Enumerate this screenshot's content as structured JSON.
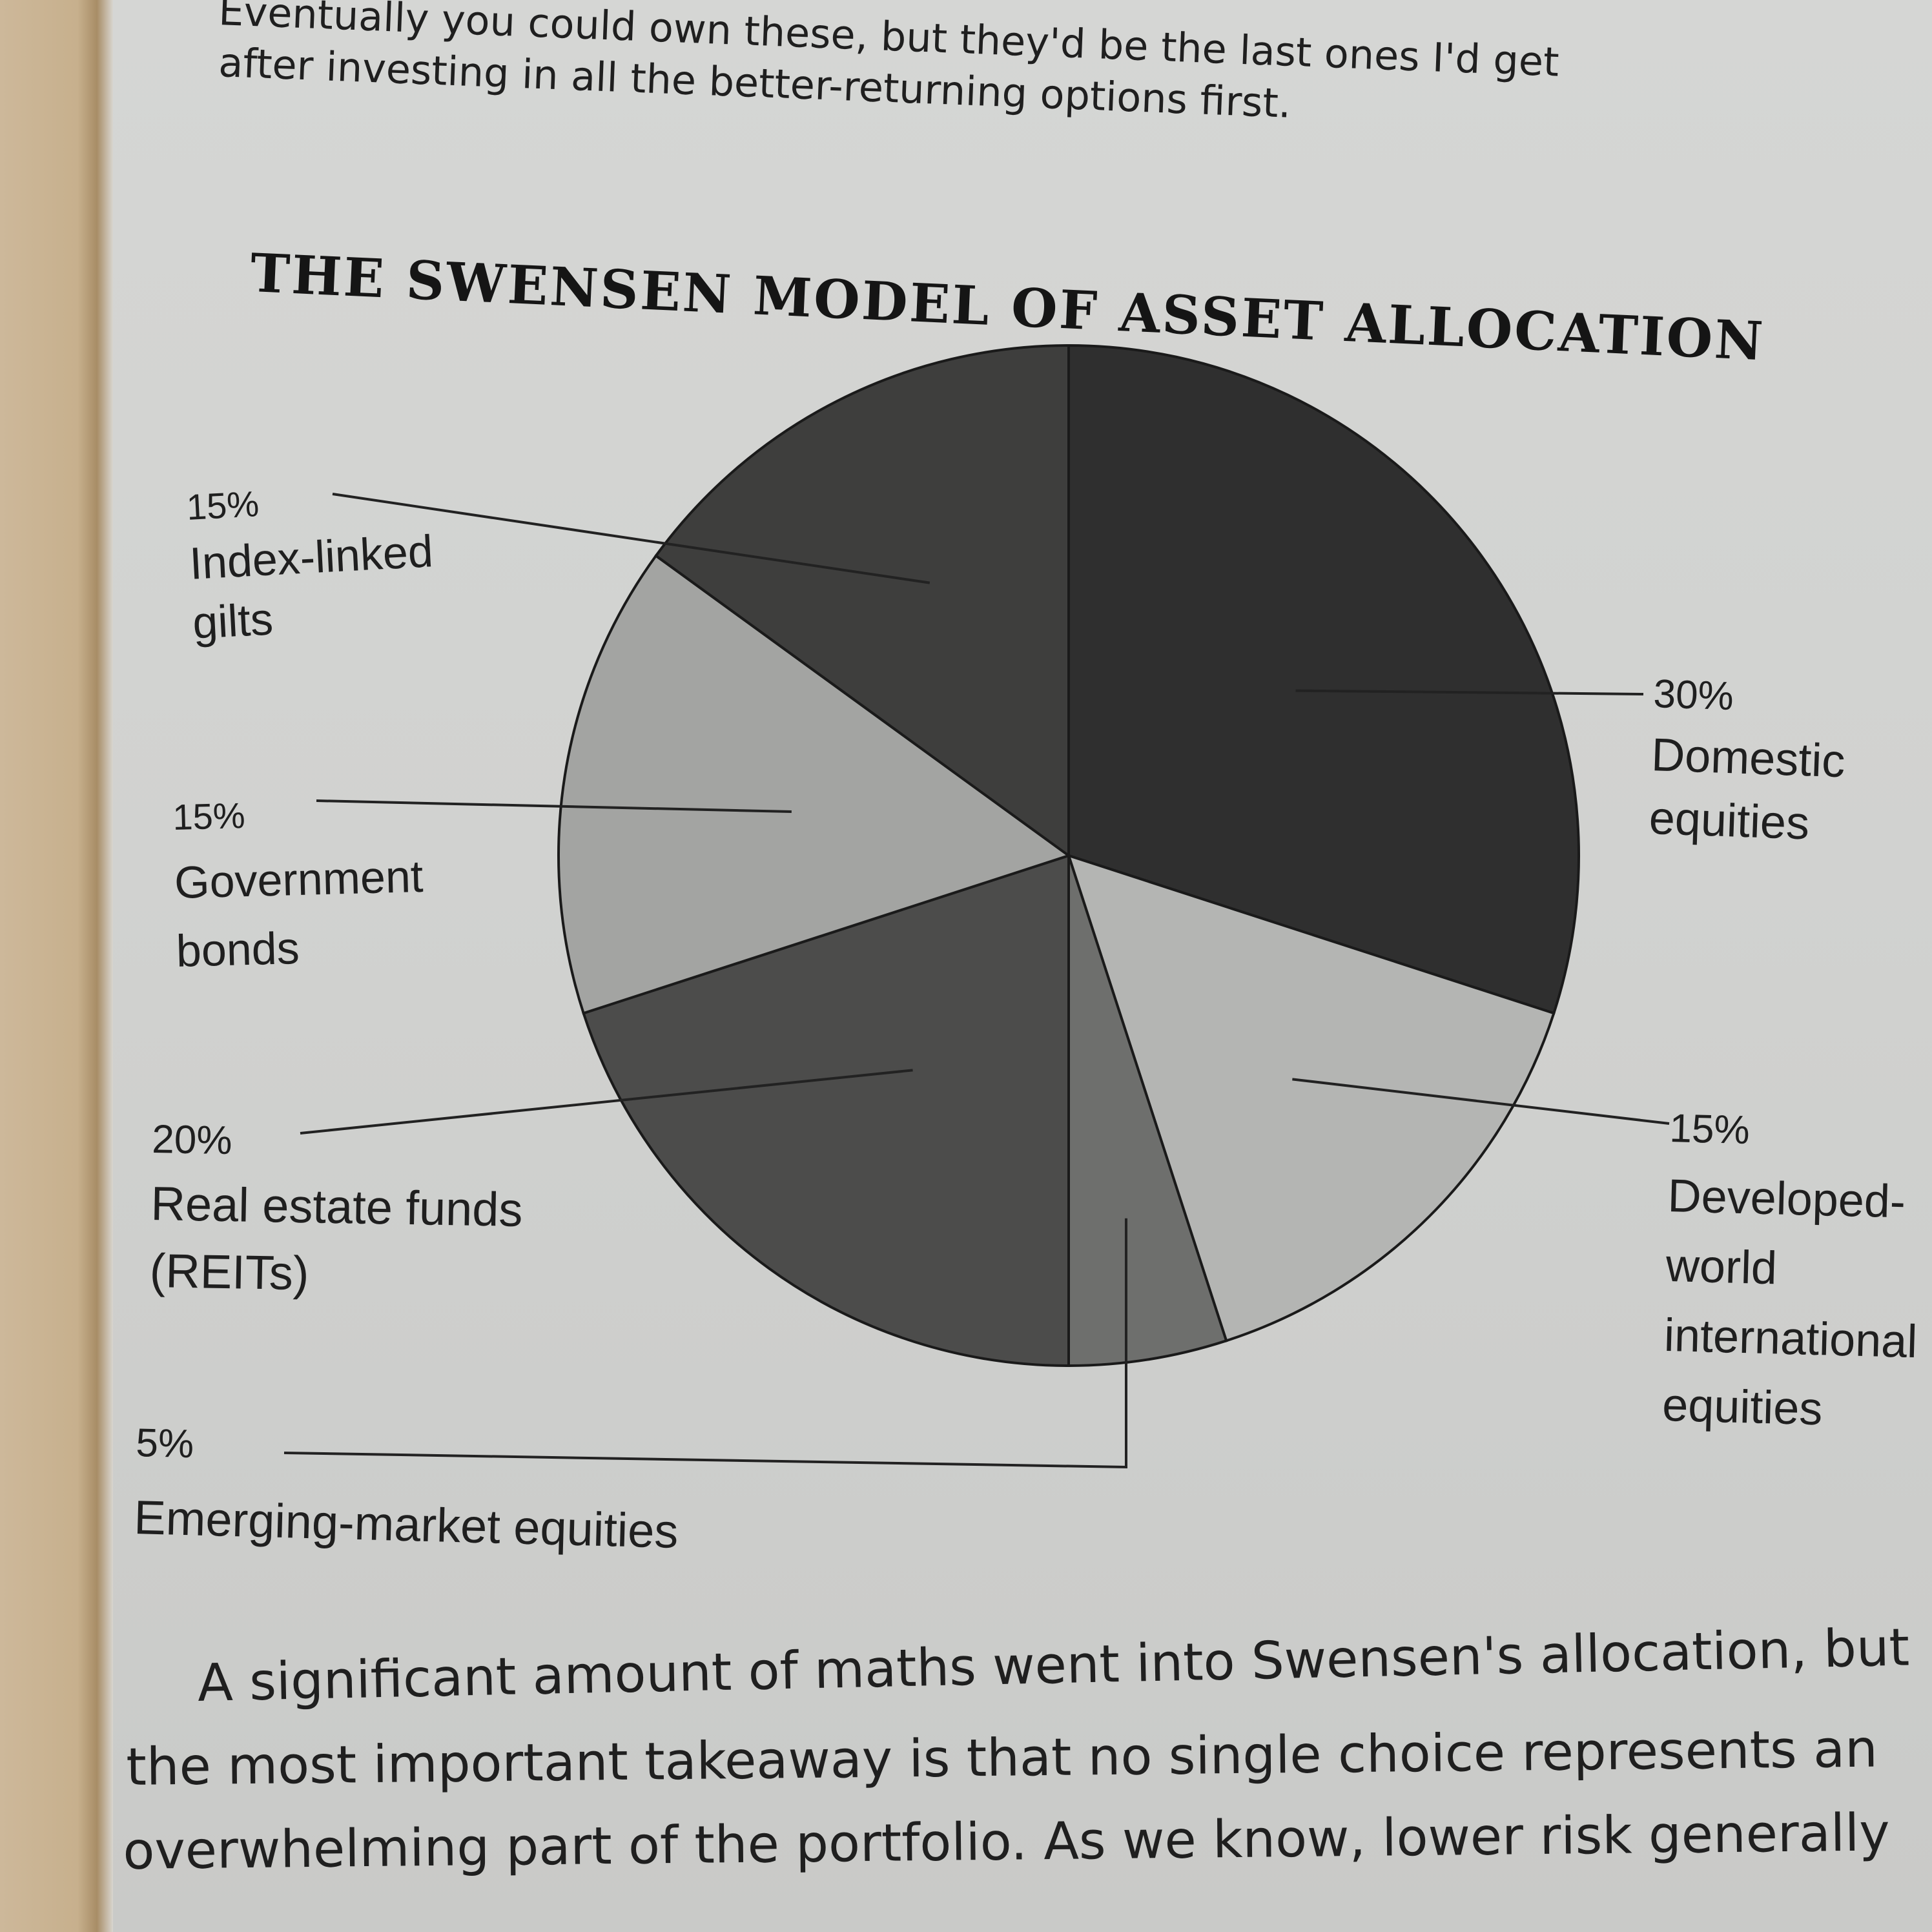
{
  "page_text": {
    "top_line1": "Eventually you could own these, but they'd be the last ones I'd get",
    "top_line2": "after investing in all the better-returning options first.",
    "bottom_line1": "A significant amount of maths went into Swensen's allocation, but",
    "bottom_line2": "the most important takeaway is that no single choice represents an",
    "bottom_line3": "overwhelming part of the portfolio. As we know, lower risk generally"
  },
  "chart_data": {
    "type": "pie",
    "title": "THE SWENSEN MODEL OF ASSET ALLOCATION",
    "slices": [
      {
        "label": "Domestic equities",
        "pct_text": "30%",
        "value": 30,
        "color": "#2f2f2f"
      },
      {
        "label": "Developed-world international equities",
        "pct_text": "15%",
        "value": 15,
        "color": "#b4b5b3"
      },
      {
        "label": "Emerging-market equities",
        "pct_text": "5%",
        "value": 5,
        "color": "#6e6f6d"
      },
      {
        "label": "Real estate funds (REITs)",
        "pct_text": "20%",
        "value": 20,
        "color": "#4c4c4b"
      },
      {
        "label": "Government bonds",
        "pct_text": "15%",
        "value": 15,
        "color": "#a3a4a2"
      },
      {
        "label": "Index-linked gilts",
        "pct_text": "15%",
        "value": 15,
        "color": "#3e3e3d"
      }
    ],
    "label_lines": {
      "domestic": [
        "30%",
        "Domestic",
        "equities"
      ],
      "developed": [
        "15%",
        "Developed-",
        "world",
        "international",
        "equities"
      ],
      "emerging": [
        "5%",
        "Emerging-market equities"
      ],
      "reits": [
        "20%",
        "Real estate funds",
        "(REITs)"
      ],
      "gov": [
        "15%",
        "Government",
        "bonds"
      ],
      "gilts": [
        "15%",
        "Index-linked",
        "gilts"
      ]
    }
  }
}
